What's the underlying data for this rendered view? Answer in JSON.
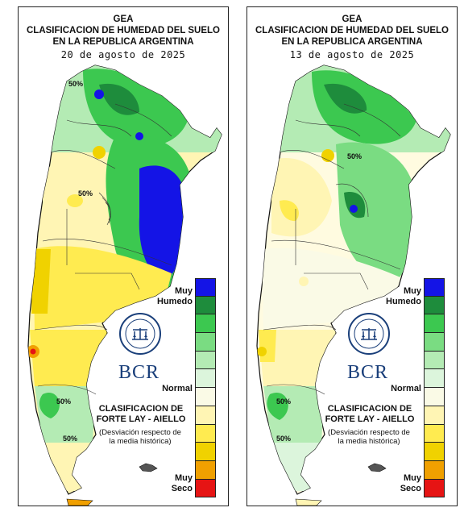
{
  "panels": [
    {
      "id": "left",
      "title_line1": "GEA",
      "title_line2": "CLASIFICACION DE HUMEDAD DEL SUELO",
      "title_line3": "EN LA REPUBLICA ARGENTINA",
      "date": "20 de agosto de 2025",
      "contour_labels": [
        "50%",
        "50%",
        "50%",
        "50%"
      ]
    },
    {
      "id": "right",
      "title_line1": "GEA",
      "title_line2": "CLASIFICACION DE HUMEDAD DEL SUELO",
      "title_line3": "EN LA REPUBLICA ARGENTINA",
      "date": "13 de agosto de 2025",
      "contour_labels": [
        "50%",
        "50%",
        "50%"
      ]
    }
  ],
  "legend": {
    "top_label_line1": "Muy",
    "top_label_line2": "Humedo",
    "middle_label": "Normal",
    "bottom_label_line1": "Muy",
    "bottom_label_line2": "Seco",
    "scale_colors": [
      "#1414e6",
      "#1e8c3c",
      "#3cc850",
      "#7adc82",
      "#b4ebb4",
      "#dcf5dc",
      "#fafae6",
      "#fff5b4",
      "#ffeb50",
      "#f0d200",
      "#f0a000",
      "#e61414"
    ]
  },
  "branding": {
    "bcr_text": "BCR",
    "classification_line1": "CLASIFICACION DE",
    "classification_line2": "FORTE LAY - AIELLO",
    "description_line1": "(Desviación respecto de",
    "description_line2": "la media histórica)"
  }
}
